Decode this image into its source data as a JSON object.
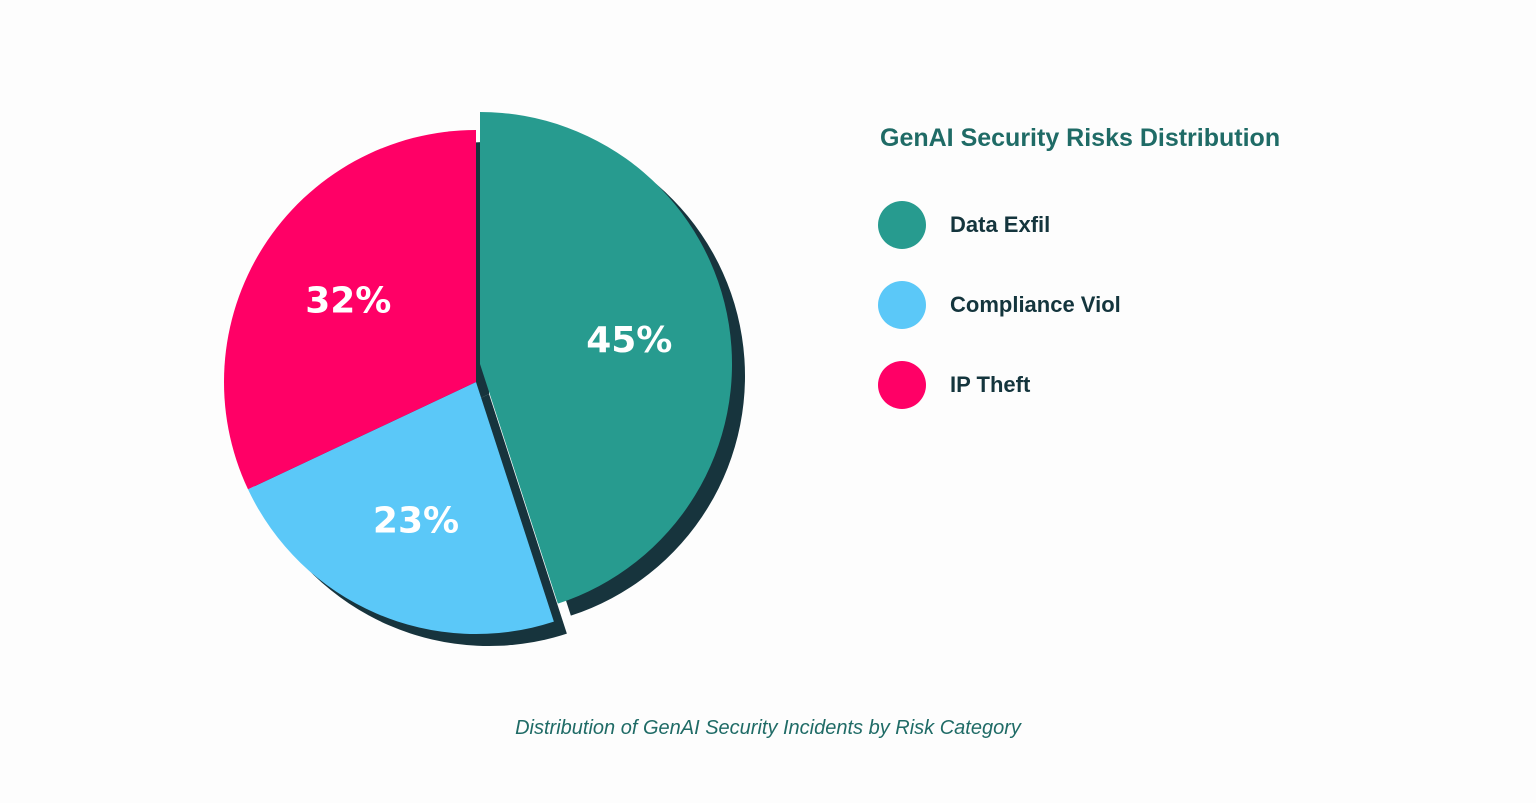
{
  "chart_data": {
    "type": "pie",
    "title": "GenAI Security Risks Distribution",
    "caption": "Distribution of GenAI Security Incidents by Risk Category",
    "categories": [
      "Data Exfil",
      "Compliance Viol",
      "IP Theft"
    ],
    "values": [
      45,
      23,
      32
    ],
    "labels": [
      "45%",
      "23%",
      "32%"
    ],
    "colors": [
      "#279b8f",
      "#5bc8f8",
      "#ff0066"
    ],
    "exploded": [
      "Data Exfil"
    ],
    "shadow_color": "#17343d",
    "legend_position": "right"
  }
}
